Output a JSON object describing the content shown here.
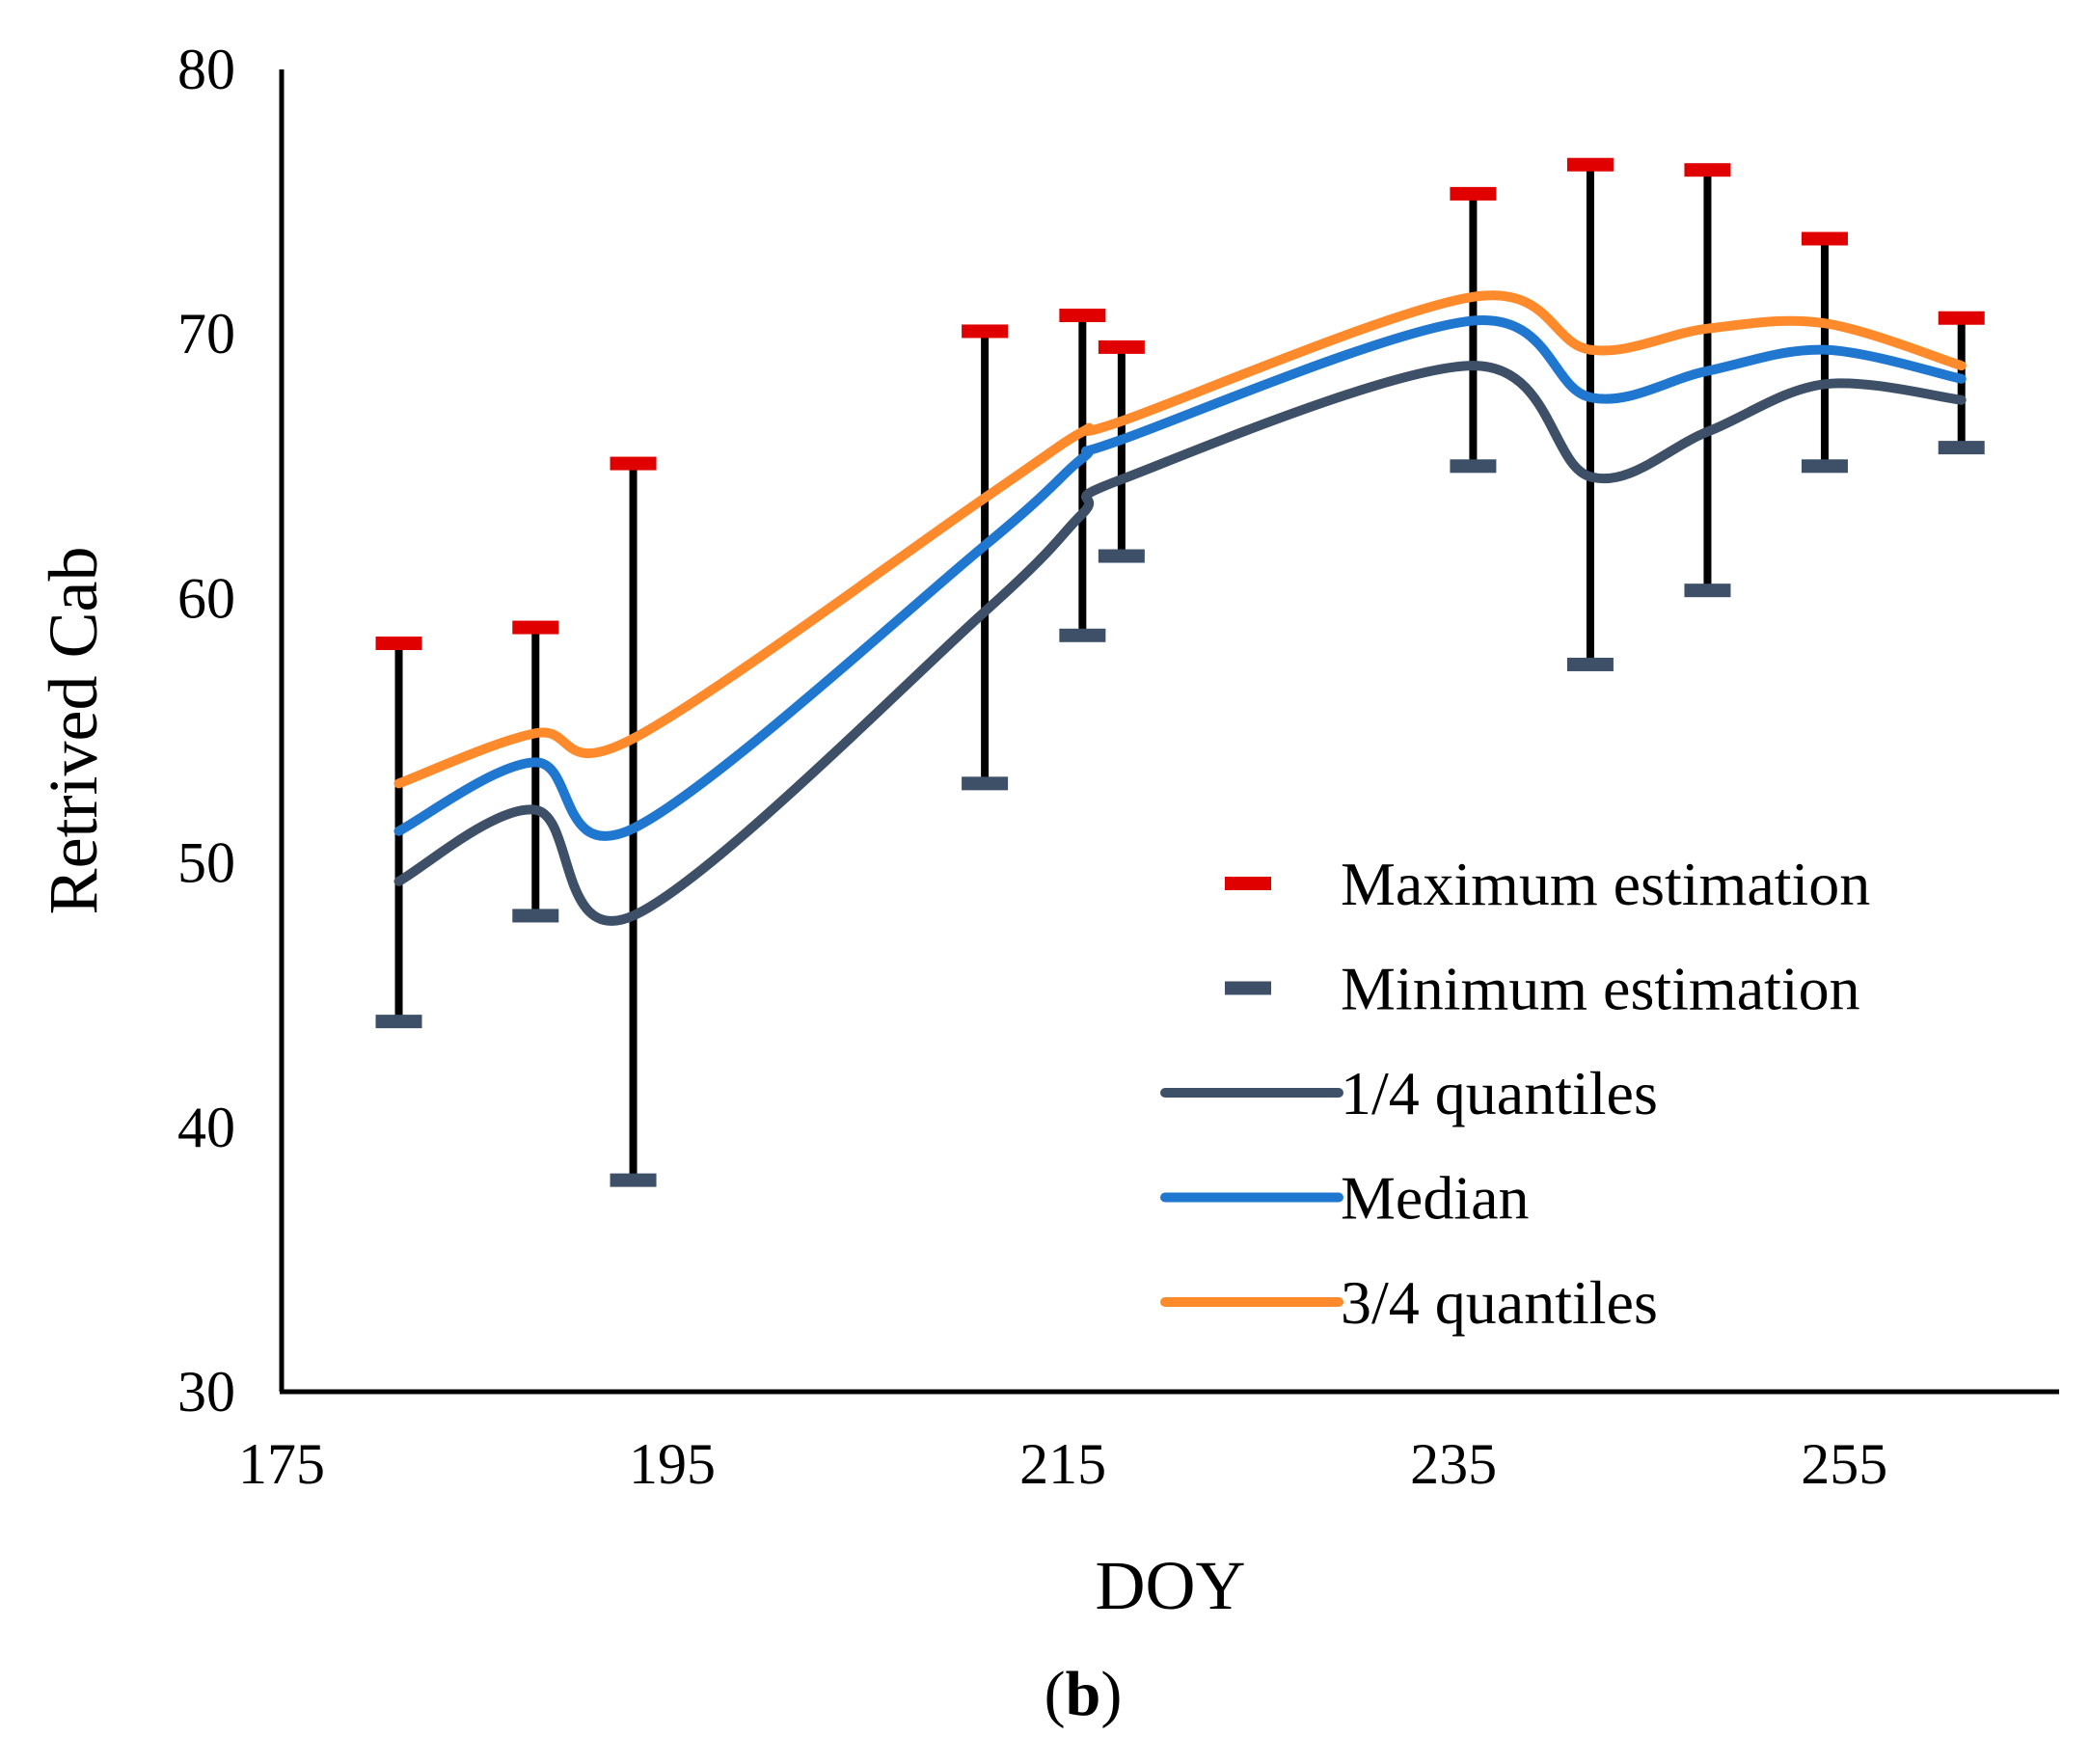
{
  "chart_data": {
    "type": "line",
    "title": "",
    "panel_label": "(b)",
    "xlabel": "DOY",
    "ylabel": "Retrived Cab",
    "xlim": [
      175,
      266
    ],
    "ylim": [
      30,
      80
    ],
    "xticks": [
      175,
      195,
      215,
      235,
      255
    ],
    "yticks": [
      30,
      40,
      50,
      60,
      70,
      80
    ],
    "grid": false,
    "legend_position": "right",
    "x": [
      181,
      188,
      193,
      211,
      216,
      218,
      236,
      242,
      248,
      254,
      261
    ],
    "series": [
      {
        "name": "Maximum estimation",
        "kind": "marker",
        "color": "#e00000",
        "values": [
          58.3,
          58.9,
          65.1,
          70.1,
          70.7,
          69.5,
          75.3,
          76.4,
          76.2,
          73.6,
          70.6
        ]
      },
      {
        "name": "Minimum estimation",
        "kind": "marker",
        "color": "#3d5068",
        "values": [
          44.0,
          48.0,
          38.0,
          53.0,
          58.6,
          61.6,
          65.0,
          57.5,
          60.3,
          65.0,
          65.7
        ]
      },
      {
        "name": "1/4 quantiles",
        "kind": "line",
        "color": "#3d5068",
        "values": [
          49.3,
          52.0,
          48.0,
          59.5,
          63.2,
          64.5,
          68.8,
          64.6,
          66.3,
          68.1,
          67.5
        ]
      },
      {
        "name": "Median",
        "kind": "line",
        "color": "#1f77d0",
        "values": [
          51.2,
          53.8,
          51.3,
          62.0,
          65.3,
          66.0,
          70.5,
          67.6,
          68.6,
          69.4,
          68.3
        ]
      },
      {
        "name": "3/4 quantiles",
        "kind": "line",
        "color": "#ff8a2b",
        "values": [
          53.0,
          54.9,
          54.7,
          63.8,
          66.3,
          66.7,
          71.4,
          69.4,
          70.2,
          70.4,
          68.8
        ]
      }
    ],
    "errorbar_color": "#000000"
  }
}
